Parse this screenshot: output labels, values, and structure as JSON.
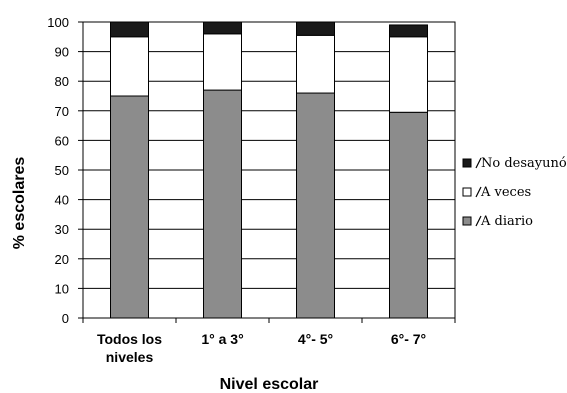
{
  "chart_data": {
    "type": "bar",
    "stacked": true,
    "categories": [
      [
        "Todos los",
        "niveles"
      ],
      [
        "1° a 3°"
      ],
      [
        "4°- 5°"
      ],
      [
        "6°- 7°"
      ]
    ],
    "series": [
      {
        "name": "A diario",
        "values": [
          75,
          77,
          76,
          69.5
        ],
        "color": "#8c8c8c"
      },
      {
        "name": "A veces",
        "values": [
          20,
          19,
          19.5,
          25.5
        ],
        "color": "#ffffff"
      },
      {
        "name": "No desayunó",
        "values": [
          5,
          4,
          4.5,
          4
        ],
        "color": "#1a1a1a"
      }
    ],
    "legend_order": [
      "No desayunó",
      "A veces",
      "A diario"
    ],
    "legend_position": "right",
    "xlabel": "Nivel escolar",
    "ylabel": "% escolares",
    "ylim": [
      0,
      100
    ],
    "yticks": [
      0,
      10,
      20,
      30,
      40,
      50,
      60,
      70,
      80,
      90,
      100
    ],
    "grid": true
  }
}
